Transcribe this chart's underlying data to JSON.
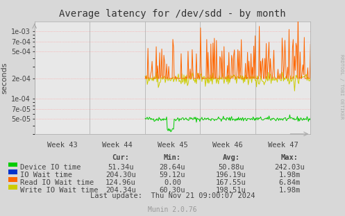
{
  "title": "Average latency for /dev/sdd - by month",
  "ylabel": "seconds",
  "background_color": "#d8d8d8",
  "plot_bg_color": "#e8e8e8",
  "grid_color": "#ff9999",
  "week_labels": [
    "Week 43",
    "Week 44",
    "Week 45",
    "Week 46",
    "Week 47"
  ],
  "yticks": [
    5e-05,
    7e-05,
    0.0001,
    0.0002,
    0.0005,
    0.0007,
    0.001
  ],
  "ylim_low": 3e-05,
  "ylim_high": 0.0014,
  "legend": [
    {
      "label": "Device IO time",
      "color": "#00cc00"
    },
    {
      "label": "IO Wait time",
      "color": "#0033cc"
    },
    {
      "label": "Read IO Wait time",
      "color": "#ff6600"
    },
    {
      "label": "Write IO Wait time",
      "color": "#cccc00"
    }
  ],
  "table_header": [
    "Cur:",
    "Min:",
    "Avg:",
    "Max:"
  ],
  "table_data": [
    [
      "51.34u",
      "28.64u",
      "50.88u",
      "242.03u"
    ],
    [
      "204.30u",
      "59.12u",
      "196.19u",
      "1.98m"
    ],
    [
      "124.96u",
      "0.00",
      "167.55u",
      "6.84m"
    ],
    [
      "204.34u",
      "60.30u",
      "198.51u",
      "1.98m"
    ]
  ],
  "last_update": "Last update:  Thu Nov 21 09:00:07 2024",
  "munin_version": "Munin 2.0.76",
  "watermark": "RRDTOOL / TOBI OETIKER"
}
